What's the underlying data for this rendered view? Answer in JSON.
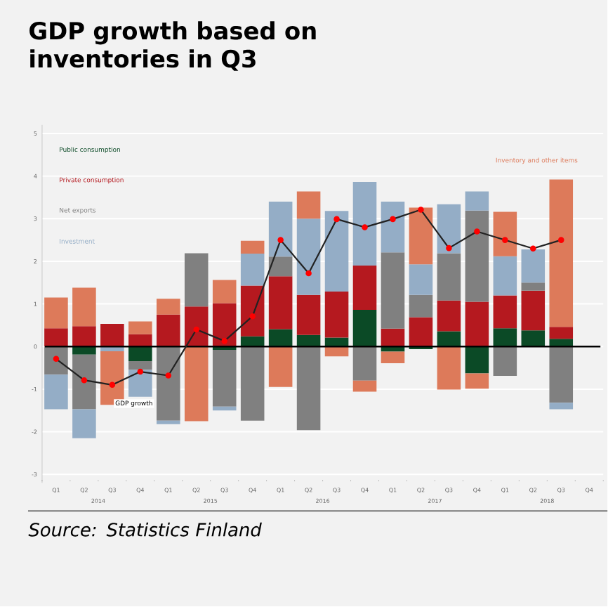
{
  "chart_data": {
    "type": "bar",
    "title": "GDP growth based on inventories in Q3",
    "stacked": true,
    "categories": [
      "Q1",
      "Q2",
      "Q3",
      "Q4",
      "Q1",
      "Q2",
      "Q3",
      "Q4",
      "Q1",
      "Q2",
      "Q3",
      "Q4",
      "Q1",
      "Q2",
      "Q3",
      "Q4",
      "Q1",
      "Q2",
      "Q3",
      "Q4"
    ],
    "series": [
      {
        "name": "Public consumption",
        "color": "#0b4a26",
        "values": [
          null,
          -0.19,
          null,
          -0.34,
          null,
          null,
          -0.08,
          0.24,
          0.41,
          0.27,
          0.21,
          0.86,
          -0.12,
          -0.06,
          0.36,
          -0.63,
          0.43,
          0.38,
          0.18,
          null
        ]
      },
      {
        "name": "Private consumption",
        "color": "#b5191f",
        "values": [
          0.43,
          0.48,
          0.53,
          0.29,
          0.75,
          0.94,
          1.02,
          1.19,
          1.24,
          0.94,
          1.08,
          1.04,
          0.42,
          0.69,
          0.72,
          1.05,
          0.77,
          0.93,
          0.28,
          null
        ]
      },
      {
        "name": "Net exports",
        "color": "#808080",
        "values": [
          -0.66,
          -1.28,
          null,
          -0.21,
          -1.74,
          1.25,
          -1.33,
          -1.74,
          0.46,
          -1.96,
          null,
          -0.8,
          1.79,
          0.52,
          1.11,
          2.14,
          -0.69,
          0.19,
          -1.32,
          null
        ]
      },
      {
        "name": "Investment",
        "color": "#94adc6",
        "values": [
          -0.81,
          -0.68,
          -0.11,
          -0.63,
          -0.08,
          null,
          -0.09,
          0.75,
          1.29,
          1.79,
          1.89,
          1.96,
          1.19,
          0.72,
          1.15,
          0.45,
          0.92,
          0.78,
          -0.15,
          null
        ]
      },
      {
        "name": "Inventory and other items",
        "color": "#dd7a5a",
        "values": [
          0.72,
          0.9,
          -1.26,
          0.3,
          0.37,
          -1.75,
          0.54,
          0.3,
          -0.95,
          0.64,
          -0.23,
          -0.26,
          -0.27,
          1.33,
          -1.01,
          -0.36,
          1.04,
          null,
          3.46,
          null
        ]
      },
      {
        "name": "GDP growth",
        "type": "line",
        "color": "#222222",
        "values": [
          -0.29,
          -0.79,
          -0.9,
          -0.59,
          -0.68,
          0.4,
          0.13,
          0.71,
          2.5,
          1.72,
          2.99,
          2.8,
          2.99,
          3.21,
          2.31,
          2.7,
          2.5,
          2.3,
          2.5,
          null
        ]
      }
    ],
    "marker": "circle",
    "ylim": [
      -3.2,
      5.2
    ],
    "yticks": [
      -3,
      -2,
      -1,
      0,
      1,
      2,
      3,
      4,
      5
    ],
    "grid": "y",
    "legend": "top left",
    "annotations": [
      "2014",
      "2015",
      "2016",
      "2017",
      "2018",
      "Source: Statistics Finland"
    ]
  }
}
